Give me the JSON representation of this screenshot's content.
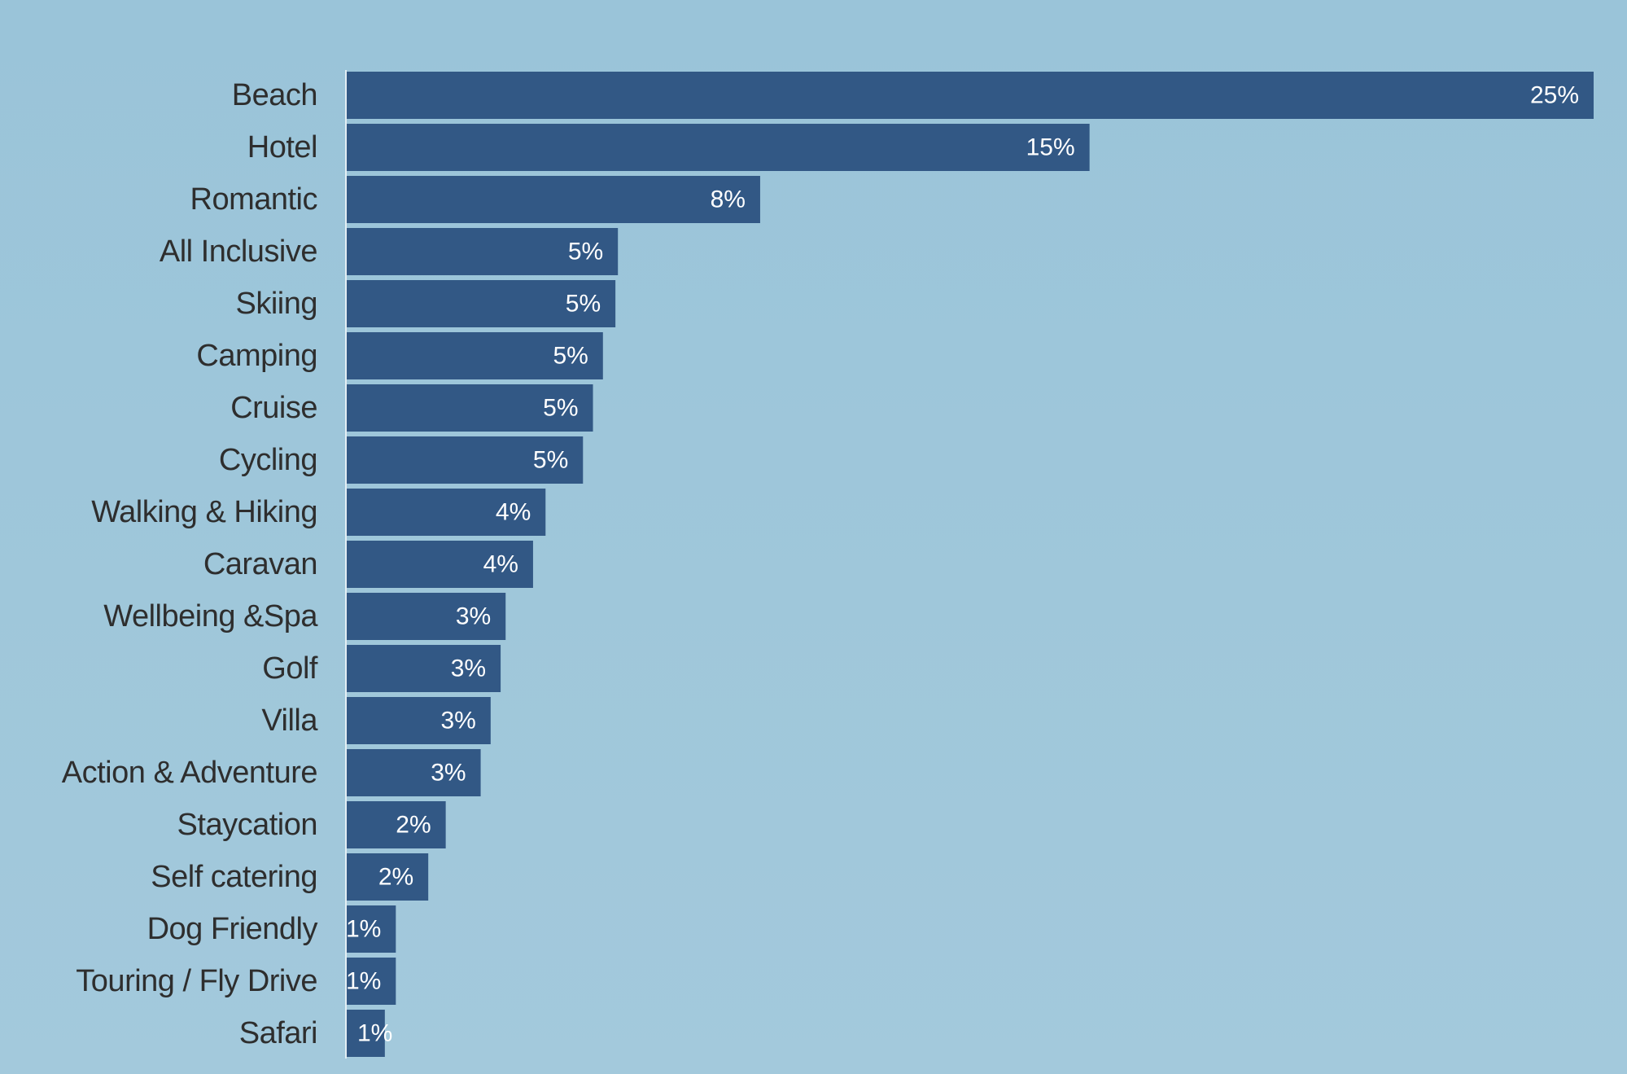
{
  "chart_data": {
    "type": "bar",
    "orientation": "horizontal",
    "categories": [
      "Beach",
      "Hotel",
      "Romantic",
      "All Inclusive",
      "Skiing",
      "Camping",
      "Cruise",
      "Cycling",
      "Walking & Hiking",
      "Caravan",
      "Wellbeing &Spa",
      "Golf",
      "Villa",
      "Action & Adventure",
      "Staycation",
      "Self catering",
      "Dog Friendly",
      "Touring / Fly Drive",
      "Safari"
    ],
    "values": [
      25,
      14.9,
      8.3,
      5.45,
      5.4,
      5.15,
      4.95,
      4.75,
      4.0,
      3.75,
      3.2,
      3.1,
      2.9,
      2.7,
      2.0,
      1.65,
      1.0,
      1.0,
      0.78
    ],
    "data_labels": [
      "25%",
      "15%",
      "8%",
      "5%",
      "5%",
      "5%",
      "5%",
      "5%",
      "4%",
      "4%",
      "3%",
      "3%",
      "3%",
      "3%",
      "2%",
      "2%",
      "1%",
      "1%",
      "1%"
    ],
    "xlim": [
      0,
      25
    ],
    "title": "",
    "xlabel": "",
    "ylabel": "",
    "grid": false,
    "legend": "none",
    "colors": {
      "bar": "#325885",
      "background": "#9dc6da",
      "category_text": "#2e2e2e",
      "value_text": "#ffffff",
      "axis_line": "#e3eef4"
    }
  }
}
